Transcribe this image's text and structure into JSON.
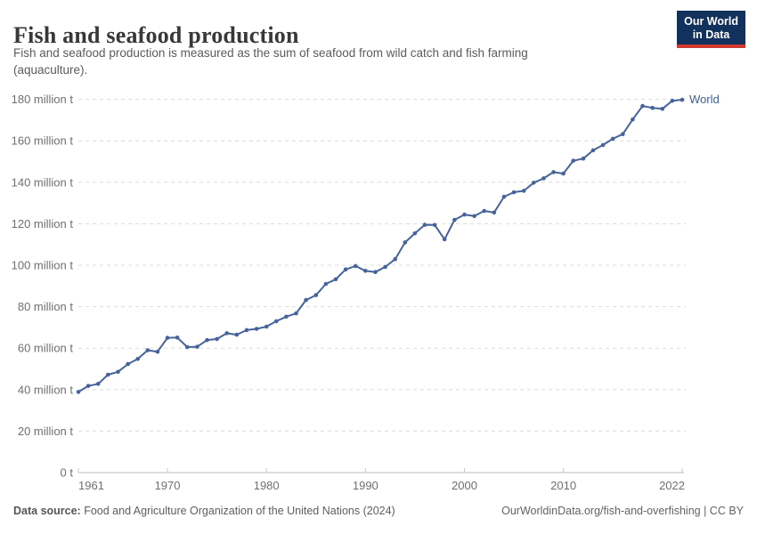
{
  "header": {
    "title": "Fish and seafood production",
    "subtitle": "Fish and seafood production is measured as the sum of seafood from wild catch and fish farming (aquaculture).",
    "logo_line1": "Our World",
    "logo_line2": "in Data",
    "logo_bg": "#12315c",
    "logo_accent": "#cf3b2e"
  },
  "chart_data": {
    "type": "line",
    "title": "Fish and seafood production",
    "ylabel": "",
    "xlabel": "",
    "unit": "million t",
    "ylim": [
      0,
      180
    ],
    "xlim": [
      1961,
      2022
    ],
    "grid": "horizontal-dashed",
    "legend_position": "end-of-line",
    "line_color": "#46649b",
    "xticks": [
      1961,
      1970,
      1980,
      1990,
      2000,
      2010,
      2022
    ],
    "xtick_labels": [
      "1961",
      "1970",
      "1980",
      "1990",
      "2000",
      "2010",
      "2022"
    ],
    "yticks": [
      0,
      20,
      40,
      60,
      80,
      100,
      120,
      140,
      160,
      180
    ],
    "ytick_labels": [
      "0 t",
      "20 million t",
      "40 million t",
      "60 million t",
      "80 million t",
      "100 million t",
      "120 million t",
      "140 million t",
      "160 million t",
      "180 million t"
    ],
    "x": [
      1961,
      1962,
      1963,
      1964,
      1965,
      1966,
      1967,
      1968,
      1969,
      1970,
      1971,
      1972,
      1973,
      1974,
      1975,
      1976,
      1977,
      1978,
      1979,
      1980,
      1981,
      1982,
      1983,
      1984,
      1985,
      1986,
      1987,
      1988,
      1989,
      1990,
      1991,
      1992,
      1993,
      1994,
      1995,
      1996,
      1997,
      1998,
      1999,
      2000,
      2001,
      2002,
      2003,
      2004,
      2005,
      2006,
      2007,
      2008,
      2009,
      2010,
      2011,
      2012,
      2013,
      2014,
      2015,
      2016,
      2017,
      2018,
      2019,
      2020,
      2021,
      2022
    ],
    "series": [
      {
        "name": "World",
        "color": "#46649b",
        "values": [
          38.9,
          41.8,
          42.8,
          47.2,
          48.6,
          52.3,
          54.8,
          59.0,
          58.3,
          65.0,
          65.1,
          60.5,
          60.7,
          63.9,
          64.4,
          67.2,
          66.5,
          68.7,
          69.3,
          70.4,
          73.0,
          75.2,
          76.8,
          83.2,
          85.6,
          91.0,
          93.2,
          98.0,
          99.6,
          97.3,
          96.7,
          99.2,
          102.9,
          111.0,
          115.4,
          119.5,
          119.4,
          112.5,
          121.9,
          124.4,
          123.7,
          126.2,
          125.4,
          133.0,
          135.2,
          135.9,
          139.8,
          141.9,
          144.9,
          144.2,
          150.4,
          151.4,
          155.4,
          158.0,
          161.0,
          163.2,
          170.3,
          176.8,
          175.9,
          175.4,
          179.3,
          179.8
        ]
      }
    ]
  },
  "footer": {
    "source_label": "Data source:",
    "source_text": " Food and Agriculture Organization of the United Nations (2024)",
    "link_text": "OurWorldinData.org/fish-and-overfishing | CC BY"
  }
}
